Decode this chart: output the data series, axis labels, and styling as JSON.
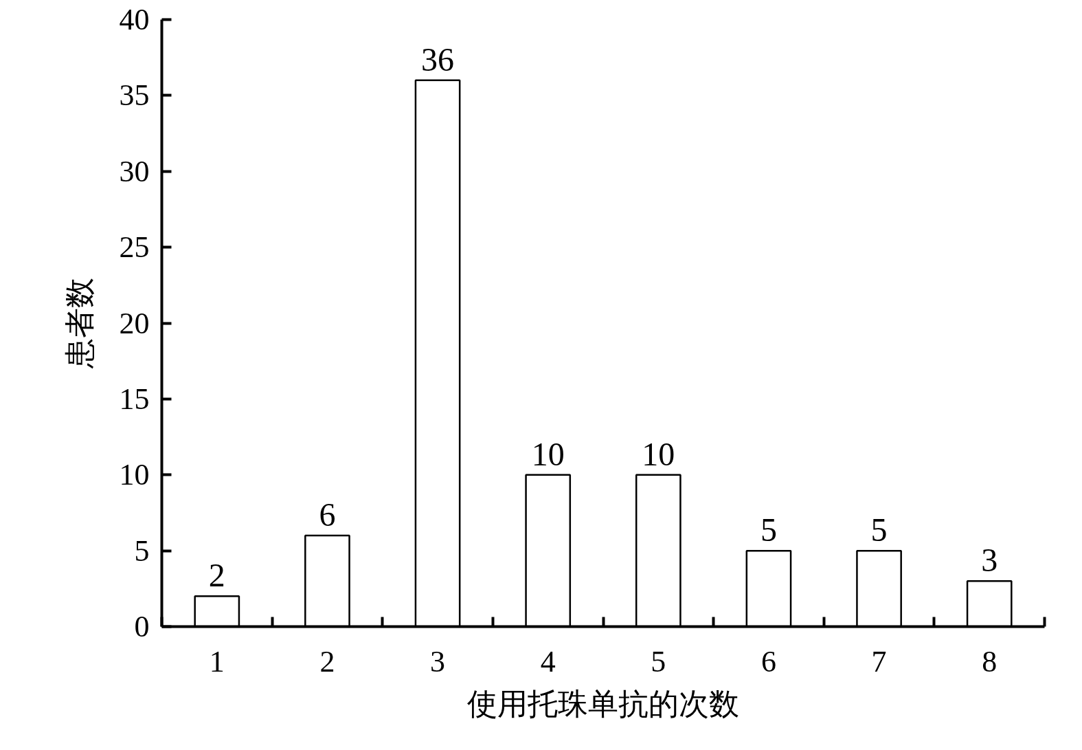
{
  "chart_data": {
    "type": "bar",
    "xlabel": "使用托珠单抗的次数",
    "ylabel": "患者数",
    "categories": [
      "1",
      "2",
      "3",
      "4",
      "5",
      "6",
      "7",
      "8"
    ],
    "series": [
      {
        "color": "#ffffff",
        "values": [
          2,
          6,
          36,
          10,
          10,
          5,
          5,
          3
        ]
      }
    ],
    "ylim": [
      0,
      40
    ],
    "yticks": [
      0,
      5,
      10,
      15,
      20,
      25,
      30,
      35,
      40
    ],
    "data_labels": true,
    "grid": false
  }
}
